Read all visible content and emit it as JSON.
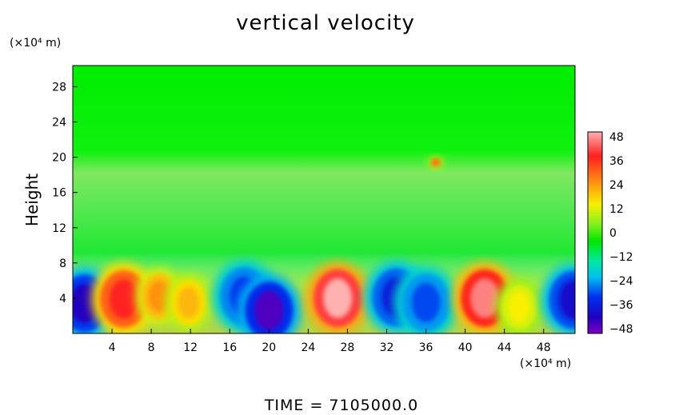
{
  "chart_data": {
    "type": "heatmap",
    "title": "vertical velocity",
    "ylabel": "Height",
    "x_unit": "(×10⁴ m)",
    "y_unit": "(×10⁴ m)",
    "x_ticks": [
      4,
      8,
      12,
      16,
      20,
      24,
      28,
      32,
      36,
      40,
      44,
      48
    ],
    "y_ticks": [
      4,
      8,
      12,
      16,
      20,
      24,
      28
    ],
    "xlim": [
      0,
      51.2
    ],
    "ylim": [
      0,
      30.4
    ],
    "colorbar": {
      "ticks": [
        48,
        36,
        24,
        12,
        0,
        -12,
        -24,
        -36,
        -48
      ],
      "range": [
        -48,
        48
      ]
    },
    "cells": [
      {
        "x": 1.2,
        "y": 3.4,
        "value": -44
      },
      {
        "x": 5.2,
        "y": 3.9,
        "value": 36
      },
      {
        "x": 8.8,
        "y": 4.2,
        "value": 24
      },
      {
        "x": 11.8,
        "y": 3.5,
        "value": 20
      },
      {
        "x": 17.5,
        "y": 4.2,
        "value": -36
      },
      {
        "x": 20.0,
        "y": 2.6,
        "value": -46
      },
      {
        "x": 27.0,
        "y": 4.0,
        "value": 48
      },
      {
        "x": 33.0,
        "y": 4.1,
        "value": -40
      },
      {
        "x": 36.0,
        "y": 3.5,
        "value": -34
      },
      {
        "x": 42.0,
        "y": 4.0,
        "value": 44
      },
      {
        "x": 45.5,
        "y": 3.0,
        "value": 14
      },
      {
        "x": 51.0,
        "y": 3.8,
        "value": -42
      },
      {
        "x": 37.0,
        "y": 19.4,
        "value": 30
      }
    ],
    "footer": "TIME  =  7105000.0"
  }
}
